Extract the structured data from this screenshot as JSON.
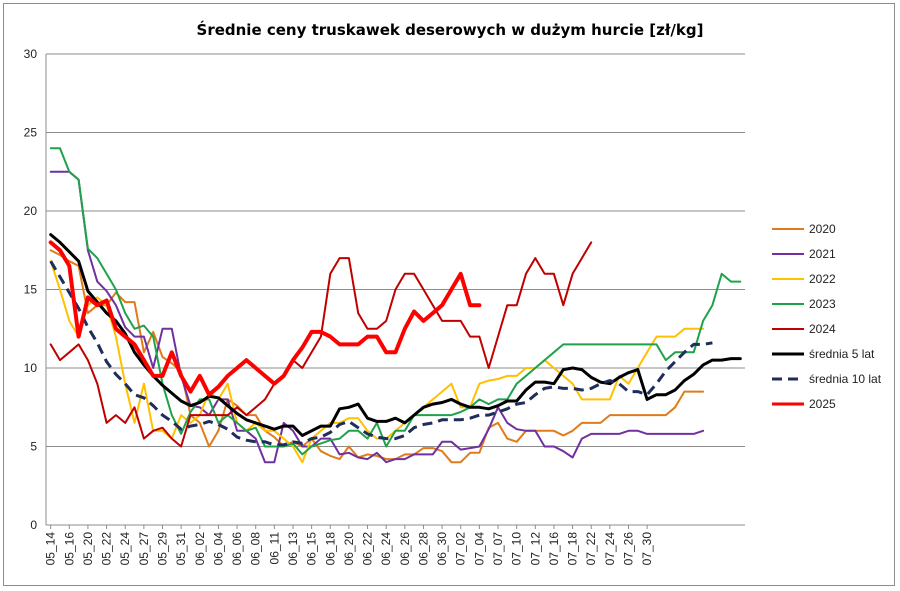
{
  "chart_data": {
    "type": "line",
    "title": "Średnie ceny truskawek deserowych w dużym hurcie [zł/kg]",
    "xlabel": "",
    "ylabel": "",
    "ylim": [
      0,
      30
    ],
    "yticks": [
      0,
      5,
      10,
      15,
      20,
      25,
      30
    ],
    "grid": "horizontal",
    "legend_position": "right",
    "x_tick_labels": [
      "05_14",
      "05_16",
      "05_20",
      "05_22",
      "05_24",
      "05_27",
      "05_29",
      "05_31",
      "06_02",
      "06_04",
      "06_06",
      "06_08",
      "06_11",
      "06_13",
      "06_15",
      "06_18",
      "06_20",
      "06_22",
      "06_24",
      "06_26",
      "06_28",
      "06_30",
      "07_02",
      "07_04",
      "07_07",
      "07_10",
      "07_12",
      "07_16",
      "07_18",
      "07_22",
      "07_24",
      "07_26",
      "07_30"
    ],
    "series": [
      {
        "name": "2020",
        "color": "#e07b1a",
        "width": 2,
        "dash": "",
        "start": 0,
        "values": [
          17.5,
          17.2,
          16.8,
          16.5,
          13.5,
          14.0,
          14.0,
          14.8,
          14.2,
          14.2,
          11.0,
          12.3,
          10.7,
          10.3,
          9.8,
          7.0,
          6.5,
          5.0,
          6.0,
          8.0,
          7.6,
          7.0,
          7.0,
          6.0,
          5.6,
          5.0,
          5.3,
          5.0,
          5.5,
          4.7,
          4.4,
          4.2,
          5.0,
          4.3,
          4.5,
          4.4,
          4.2,
          4.2,
          4.5,
          4.5,
          4.9,
          4.9,
          4.7,
          4.0,
          4.0,
          4.6,
          4.6,
          6.2,
          6.5,
          5.5,
          5.3,
          6.0,
          6.0,
          6.0,
          6.0,
          5.7,
          6.0,
          6.5,
          6.5,
          6.5,
          7.0,
          7.0,
          7.0,
          7.0,
          7.0,
          7.0,
          7.0,
          7.5,
          8.5,
          8.5,
          8.5
        ]
      },
      {
        "name": "2021",
        "color": "#7030a0",
        "width": 2,
        "dash": "",
        "start": 0,
        "values": [
          22.5,
          22.5,
          22.5,
          22.0,
          17.5,
          15.5,
          14.9,
          14.0,
          12.6,
          12.0,
          12.0,
          10.0,
          12.5,
          12.5,
          9.5,
          7.6,
          7.5,
          7.0,
          8.0,
          8.0,
          6.0,
          6.0,
          5.5,
          4.0,
          4.0,
          6.5,
          6.0,
          5.0,
          5.0,
          5.5,
          5.5,
          4.5,
          4.6,
          4.3,
          4.2,
          4.6,
          4.0,
          4.2,
          4.2,
          4.5,
          4.5,
          4.5,
          5.3,
          5.3,
          4.8,
          4.9,
          5.0,
          6.1,
          7.5,
          6.5,
          6.1,
          6.0,
          6.0,
          5.0,
          5.0,
          4.7,
          4.3,
          5.5,
          5.8,
          5.8,
          5.8,
          5.8,
          6.0,
          6.0,
          5.8,
          5.8,
          5.8,
          5.8,
          5.8,
          5.8,
          6.0
        ]
      },
      {
        "name": "2022",
        "color": "#ffc000",
        "width": 2,
        "dash": "",
        "start": 0,
        "values": [
          16.8,
          15.0,
          13.0,
          12.0,
          14.0,
          14.5,
          14.0,
          12.0,
          9.0,
          6.5,
          9.0,
          6.0,
          6.0,
          5.5,
          7.0,
          6.5,
          7.0,
          8.5,
          8.0,
          9.0,
          6.5,
          6.0,
          6.5,
          6.0,
          6.0,
          5.5,
          5.0,
          4.0,
          5.5,
          6.0,
          6.5,
          6.5,
          6.8,
          6.8,
          6.0,
          5.5,
          5.5,
          6.0,
          6.5,
          7.0,
          7.5,
          8.0,
          8.5,
          9.0,
          7.5,
          7.5,
          9.0,
          9.2,
          9.3,
          9.5,
          9.5,
          10.0,
          10.0,
          10.5,
          10.0,
          9.5,
          9.0,
          8.0,
          8.0,
          8.0,
          8.0,
          9.5,
          9.0,
          10.0,
          11.0,
          12.0,
          12.0,
          12.0,
          12.5,
          12.5,
          12.5
        ]
      },
      {
        "name": "2023",
        "color": "#1fa24a",
        "width": 2,
        "dash": "",
        "start": 0,
        "values": [
          24.0,
          24.0,
          22.5,
          22.0,
          17.6,
          17.0,
          16.0,
          15.0,
          13.5,
          12.5,
          12.7,
          12.0,
          9.0,
          7.0,
          5.8,
          7.2,
          8.0,
          8.0,
          6.5,
          7.0,
          6.5,
          6.0,
          6.2,
          5.0,
          5.0,
          5.0,
          5.2,
          4.5,
          5.0,
          5.2,
          5.4,
          5.5,
          6.0,
          6.0,
          5.5,
          6.5,
          5.0,
          6.0,
          6.0,
          7.0,
          7.0,
          7.0,
          7.0,
          7.0,
          7.2,
          7.5,
          8.0,
          7.7,
          8.0,
          8.0,
          9.0,
          9.5,
          10.0,
          10.5,
          11.0,
          11.5,
          11.5,
          11.5,
          11.5,
          11.5,
          11.5,
          11.5,
          11.5,
          11.5,
          11.5,
          11.5,
          10.5,
          11.0,
          11.0,
          11.0,
          13.0,
          14.0,
          16.0,
          15.5,
          15.5
        ]
      },
      {
        "name": "2024",
        "color": "#c00000",
        "width": 2,
        "dash": "",
        "start": 0,
        "values": [
          11.5,
          10.5,
          11.0,
          11.5,
          10.5,
          9.0,
          6.5,
          7.0,
          6.5,
          7.5,
          5.5,
          6.0,
          6.2,
          5.5,
          5.0,
          7.0,
          7.0,
          7.0,
          7.0,
          7.0,
          7.5,
          7.0,
          7.5,
          8.0,
          9.0,
          9.5,
          10.5,
          10.0,
          11.0,
          12.0,
          16.0,
          17.0,
          17.0,
          13.5,
          12.5,
          12.5,
          13.0,
          15.0,
          16.0,
          16.0,
          15.0,
          14.0,
          13.0,
          13.0,
          13.0,
          12.0,
          12.0,
          10.0,
          12.0,
          14.0,
          14.0,
          16.0,
          17.0,
          16.0,
          16.0,
          14.0,
          16.0,
          17.0,
          18.0
        ]
      },
      {
        "name": "średnia 5 lat",
        "color": "#000000",
        "width": 3,
        "dash": "",
        "start": 0,
        "values": [
          18.5,
          18.0,
          17.4,
          16.8,
          14.9,
          14.2,
          13.5,
          13.0,
          12.2,
          11.0,
          10.2,
          9.5,
          8.9,
          8.4,
          7.9,
          7.6,
          7.8,
          8.2,
          8.1,
          7.6,
          7.1,
          6.7,
          6.5,
          6.3,
          6.1,
          6.3,
          6.3,
          5.7,
          6.0,
          6.3,
          6.3,
          7.4,
          7.5,
          7.7,
          6.8,
          6.6,
          6.6,
          6.8,
          6.5,
          7.0,
          7.5,
          7.7,
          7.8,
          8.0,
          7.7,
          7.5,
          7.5,
          7.4,
          7.6,
          7.9,
          7.9,
          8.6,
          9.1,
          9.1,
          9.0,
          9.9,
          10.0,
          9.9,
          9.4,
          9.1,
          9.0,
          9.4,
          9.7,
          9.9,
          8.0,
          8.3,
          8.3,
          8.6,
          9.2,
          9.6,
          10.2,
          10.5,
          10.5,
          10.6,
          10.6
        ]
      },
      {
        "name": "średnia 10 lat",
        "color": "#1f2d5a",
        "width": 3,
        "dash": "10,6",
        "start": 0,
        "values": [
          16.8,
          15.8,
          14.8,
          13.8,
          12.6,
          11.6,
          10.4,
          9.6,
          9.0,
          8.3,
          8.1,
          7.6,
          7.0,
          6.6,
          6.1,
          6.3,
          6.4,
          6.6,
          6.4,
          6.1,
          5.6,
          5.4,
          5.3,
          5.3,
          5.1,
          5.1,
          5.3,
          5.2,
          5.5,
          5.6,
          5.9,
          6.4,
          6.6,
          6.2,
          5.8,
          5.6,
          5.5,
          5.5,
          5.7,
          6.2,
          6.4,
          6.5,
          6.7,
          6.7,
          6.7,
          6.8,
          7.0,
          7.0,
          7.2,
          7.4,
          7.7,
          7.8,
          8.3,
          8.7,
          8.8,
          8.7,
          8.7,
          8.6,
          8.7,
          9.0,
          9.2,
          9.0,
          8.5,
          8.5,
          8.3,
          9.0,
          9.8,
          10.4,
          11.0,
          11.5,
          11.5,
          11.6
        ]
      },
      {
        "name": "2025",
        "color": "#ff0000",
        "width": 4,
        "dash": "",
        "start": 0,
        "values": [
          18.0,
          17.5,
          16.5,
          12.0,
          14.5,
          14.0,
          14.3,
          12.5,
          12.0,
          11.5,
          10.5,
          9.5,
          9.5,
          11.0,
          9.5,
          8.5,
          9.5,
          8.3,
          8.8,
          9.5,
          10.0,
          10.5,
          10.0,
          9.5,
          9.0,
          9.5,
          10.5,
          11.3,
          12.3,
          12.3,
          12.0,
          11.5,
          11.5,
          11.5,
          12.0,
          12.0,
          11.0,
          11.0,
          12.5,
          13.6,
          13.0,
          13.5,
          14.0,
          15.0,
          16.0,
          14.0,
          14.0
        ]
      }
    ]
  }
}
